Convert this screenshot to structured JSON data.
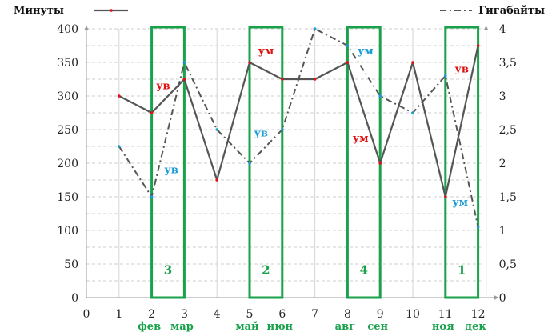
{
  "colors": {
    "minutes_line": "#555555",
    "gigabytes_line": "#555555",
    "highlight_box": "#1aa14c",
    "month_label": "#1aa14c",
    "marker_red": "#d11",
    "marker_blue": "#1a9bd6",
    "grid": "#cfcfcf"
  },
  "chart_data": {
    "type": "line",
    "legend": [
      {
        "name": "Минуты",
        "style": "solid",
        "position": "top-left"
      },
      {
        "name": "Гигабайты",
        "style": "dash-dot",
        "position": "top-right"
      }
    ],
    "x": [
      1,
      2,
      3,
      4,
      5,
      6,
      7,
      8,
      9,
      10,
      11,
      12
    ],
    "x_ticks": [
      0,
      1,
      2,
      3,
      4,
      5,
      6,
      7,
      8,
      9,
      10,
      11,
      12
    ],
    "y_left": {
      "range": [
        0,
        400
      ],
      "ticks": [
        "0",
        "50",
        "100",
        "150",
        "200",
        "250",
        "300",
        "350",
        "400"
      ]
    },
    "y_right": {
      "range": [
        0,
        4
      ],
      "ticks": [
        "0",
        "0,5",
        "1",
        "1,5",
        "2",
        "2,5",
        "3",
        "3,5",
        "4"
      ]
    },
    "series": [
      {
        "name": "Минуты",
        "axis": "left",
        "values": [
          300,
          275,
          325,
          175,
          350,
          325,
          325,
          350,
          200,
          350,
          150,
          375
        ]
      },
      {
        "name": "Гигабайты",
        "axis": "right",
        "values": [
          2.25,
          1.5,
          3.5,
          2.5,
          2.0,
          2.5,
          4.0,
          3.75,
          3.0,
          2.75,
          3.3,
          1.05
        ]
      }
    ],
    "grid": true,
    "month_labels": [
      {
        "text": "фев",
        "x": 2
      },
      {
        "text": "мар",
        "x": 3
      },
      {
        "text": "май",
        "x": 5
      },
      {
        "text": "июн",
        "x": 6
      },
      {
        "text": "авг",
        "x": 8
      },
      {
        "text": "сен",
        "x": 9
      },
      {
        "text": "ноя",
        "x": 11
      },
      {
        "text": "дек",
        "x": 12
      }
    ],
    "highlight_boxes": [
      {
        "x_from": 2,
        "x_to": 3,
        "label": "3"
      },
      {
        "x_from": 5,
        "x_to": 6,
        "label": "2"
      },
      {
        "x_from": 8,
        "x_to": 9,
        "label": "4"
      },
      {
        "x_from": 11,
        "x_to": 12,
        "label": "1"
      }
    ],
    "annotations": [
      {
        "text": "ув",
        "color": "red",
        "x": 2.35,
        "y": 310
      },
      {
        "text": "ув",
        "color": "blue",
        "x": 2.6,
        "y": 185
      },
      {
        "text": "ум",
        "color": "red",
        "x": 5.5,
        "y": 362
      },
      {
        "text": "ув",
        "color": "blue",
        "x": 5.35,
        "y": 240
      },
      {
        "text": "ум",
        "color": "blue",
        "x": 8.55,
        "y": 362
      },
      {
        "text": "ум",
        "color": "red",
        "x": 8.4,
        "y": 232
      },
      {
        "text": "ув",
        "color": "red",
        "x": 11.5,
        "y": 335
      },
      {
        "text": "ум",
        "color": "blue",
        "x": 11.45,
        "y": 137
      }
    ]
  }
}
